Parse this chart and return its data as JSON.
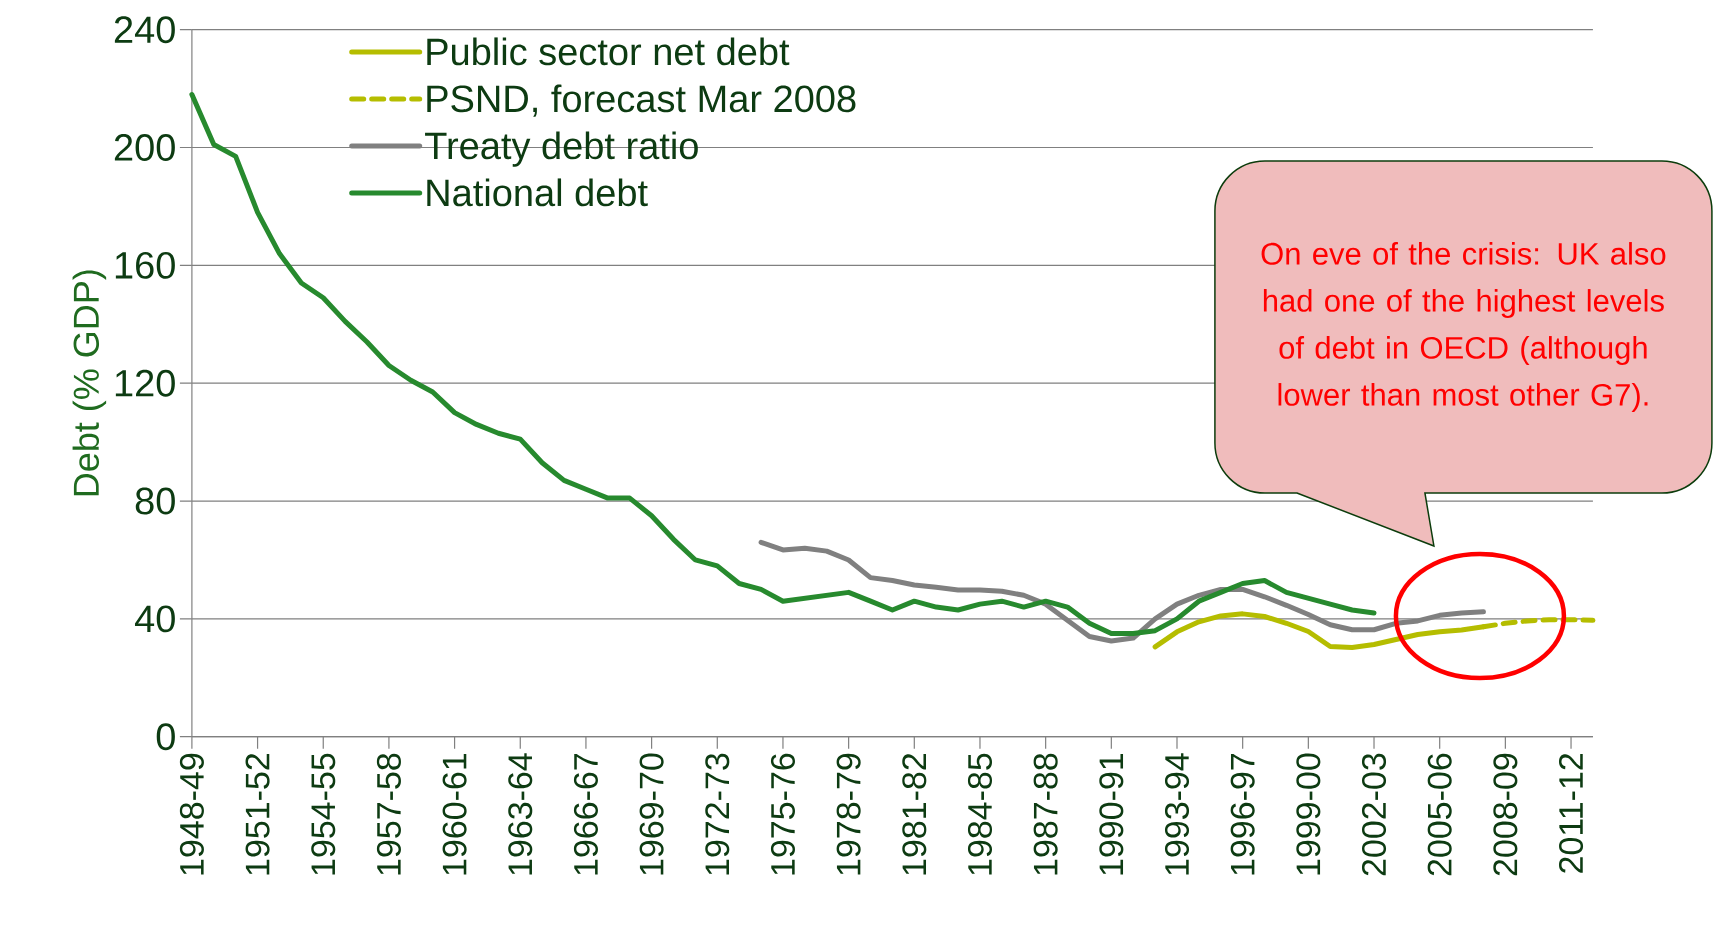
{
  "chart_data": {
    "type": "line",
    "ylabel": "Debt (% GDP)",
    "categories": [
      "1948-49",
      null,
      null,
      "1951-52",
      null,
      null,
      "1954-55",
      null,
      null,
      "1957-58",
      null,
      null,
      "1960-61",
      null,
      null,
      "1963-64",
      null,
      null,
      "1966-67",
      null,
      null,
      "1969-70",
      null,
      null,
      "1972-73",
      null,
      null,
      "1975-76",
      null,
      null,
      "1978-79",
      null,
      null,
      "1981-82",
      null,
      null,
      "1984-85",
      null,
      null,
      "1987-88",
      null,
      null,
      "1990-91",
      null,
      null,
      "1993-94",
      null,
      null,
      "1996-97",
      null,
      null,
      "1999-00",
      null,
      null,
      "2002-03",
      null,
      null,
      "2005-06",
      null,
      null,
      "2008-09",
      null,
      null,
      "2011-12",
      null
    ],
    "series": [
      {
        "name": "Public sector net debt",
        "color": "#b5bd00",
        "line_style": "solid",
        "values": [
          null,
          null,
          null,
          null,
          null,
          null,
          null,
          null,
          null,
          null,
          null,
          null,
          null,
          null,
          null,
          null,
          null,
          null,
          null,
          null,
          null,
          null,
          null,
          null,
          null,
          null,
          null,
          null,
          null,
          null,
          null,
          null,
          null,
          null,
          null,
          null,
          null,
          null,
          null,
          null,
          null,
          null,
          null,
          null,
          30.5,
          35.6,
          39,
          41,
          41.7,
          40.8,
          38.5,
          35.7,
          30.6,
          30.3,
          31.3,
          33,
          34.7,
          35.6,
          36.2,
          37.3,
          null,
          null,
          null,
          null,
          null
        ]
      },
      {
        "name": "PSND, forecast Mar 2008",
        "color": "#b5bd00",
        "line_style": "dashed",
        "values": [
          null,
          null,
          null,
          null,
          null,
          null,
          null,
          null,
          null,
          null,
          null,
          null,
          null,
          null,
          null,
          null,
          null,
          null,
          null,
          null,
          null,
          null,
          null,
          null,
          null,
          null,
          null,
          null,
          null,
          null,
          null,
          null,
          null,
          null,
          null,
          null,
          null,
          null,
          null,
          null,
          null,
          null,
          null,
          null,
          null,
          null,
          null,
          null,
          null,
          null,
          null,
          null,
          null,
          null,
          null,
          null,
          null,
          null,
          null,
          37.3,
          38.5,
          39.3,
          39.7,
          39.7,
          39.5
        ]
      },
      {
        "name": "Treaty debt ratio",
        "color": "#808080",
        "line_style": "solid",
        "values": [
          null,
          null,
          null,
          null,
          null,
          null,
          null,
          null,
          null,
          null,
          null,
          null,
          null,
          null,
          null,
          null,
          null,
          null,
          null,
          null,
          null,
          null,
          null,
          null,
          null,
          null,
          66,
          63.4,
          64,
          63,
          60,
          54,
          53,
          51.5,
          50.7,
          49.8,
          49.8,
          49.4,
          48,
          45,
          39.5,
          34,
          32.5,
          33.5,
          40,
          45,
          48,
          50,
          50,
          47.5,
          44.6,
          41.5,
          38,
          36.3,
          36.3,
          38.5,
          39.3,
          41.2,
          42,
          42.4,
          null,
          null,
          null,
          null,
          null
        ]
      },
      {
        "name": "National debt",
        "color": "#278a2e",
        "line_style": "solid",
        "values": [
          218,
          201,
          197,
          178,
          164,
          154,
          149,
          141,
          134,
          126,
          121,
          117,
          110,
          106,
          103,
          101,
          93,
          87,
          84,
          81,
          81,
          75,
          67,
          60,
          58,
          52,
          50,
          46,
          47,
          48,
          49,
          46,
          43,
          46,
          44,
          43,
          45,
          46,
          44,
          46,
          44,
          38.5,
          35,
          35,
          36,
          40,
          46,
          49,
          52,
          53,
          49,
          47,
          45,
          43,
          42,
          null,
          null,
          null,
          null,
          null,
          null,
          null,
          null,
          null,
          null
        ]
      }
    ],
    "ylim": [
      0,
      240
    ],
    "yticks": [
      0,
      40,
      80,
      120,
      160,
      200,
      240
    ],
    "grid": "y",
    "legend": "top left",
    "annotations": [
      "On eve of the crisis: UK also had one of the highest levels of debt in OECD (although lower than most other G7)."
    ]
  }
}
